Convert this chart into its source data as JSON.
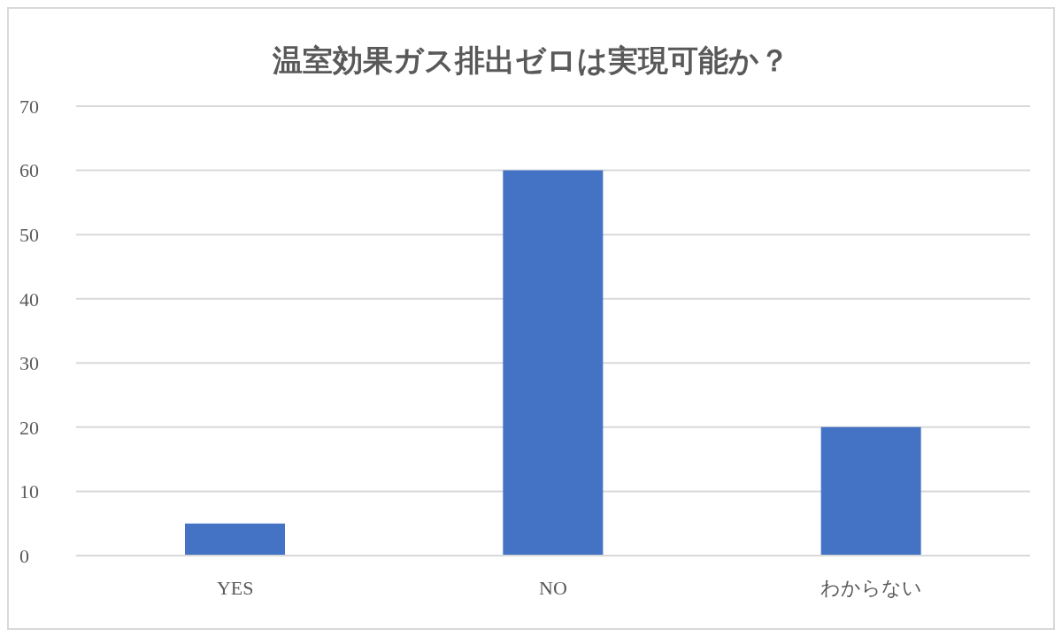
{
  "chart_data": {
    "type": "bar",
    "title": "温室効果ガス排出ゼロは実現可能か？",
    "categories": [
      "YES",
      "NO",
      "わからない"
    ],
    "values": [
      5,
      60,
      20
    ],
    "color": "#4472c4",
    "ylim": [
      0,
      70
    ],
    "yticks": [
      0,
      10,
      20,
      30,
      40,
      50,
      60,
      70
    ],
    "grid": "y"
  }
}
